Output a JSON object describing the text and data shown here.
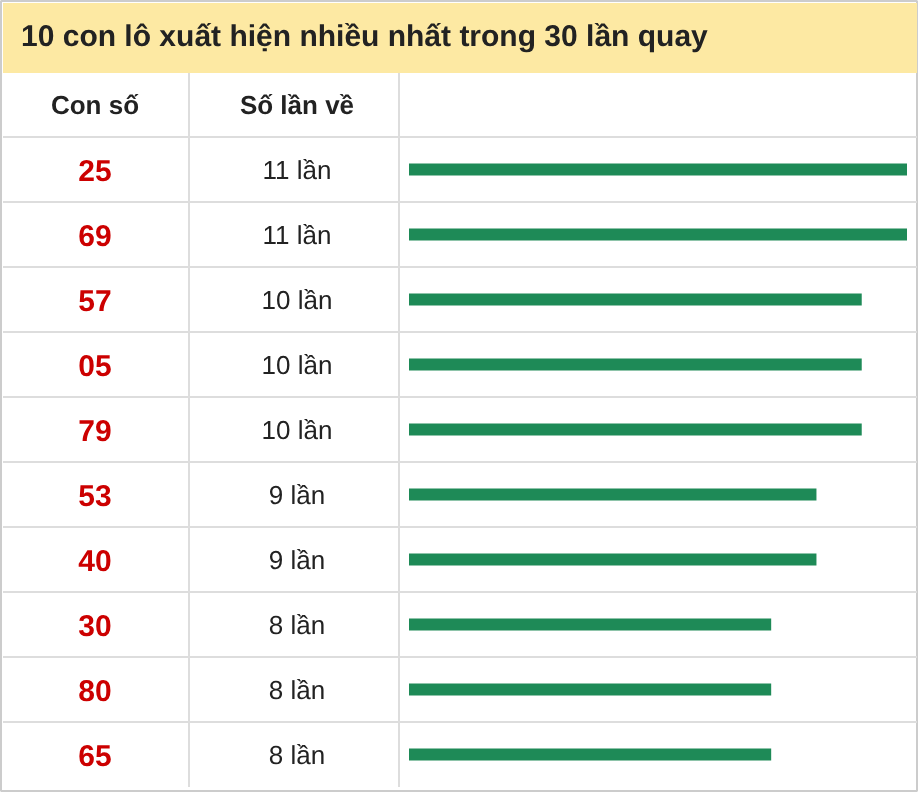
{
  "chart_data": {
    "type": "bar",
    "orientation": "horizontal",
    "title": "10 con lô xuất hiện nhiều nhất trong 30 lần quay",
    "ylabel": "Con số",
    "xlabel": "Số lần về",
    "categories": [
      "25",
      "69",
      "57",
      "05",
      "79",
      "53",
      "40",
      "30",
      "80",
      "65"
    ],
    "values": [
      11,
      11,
      10,
      10,
      10,
      9,
      9,
      8,
      8,
      8
    ],
    "value_labels": [
      "11 lần",
      "11 lần",
      "10 lần",
      "10 lần",
      "10 lần",
      "9 lần",
      "9 lần",
      "8 lần",
      "8 lần",
      "8 lần"
    ],
    "color": "#1e8a57",
    "xlim": [
      0,
      11
    ],
    "grid": false
  }
}
